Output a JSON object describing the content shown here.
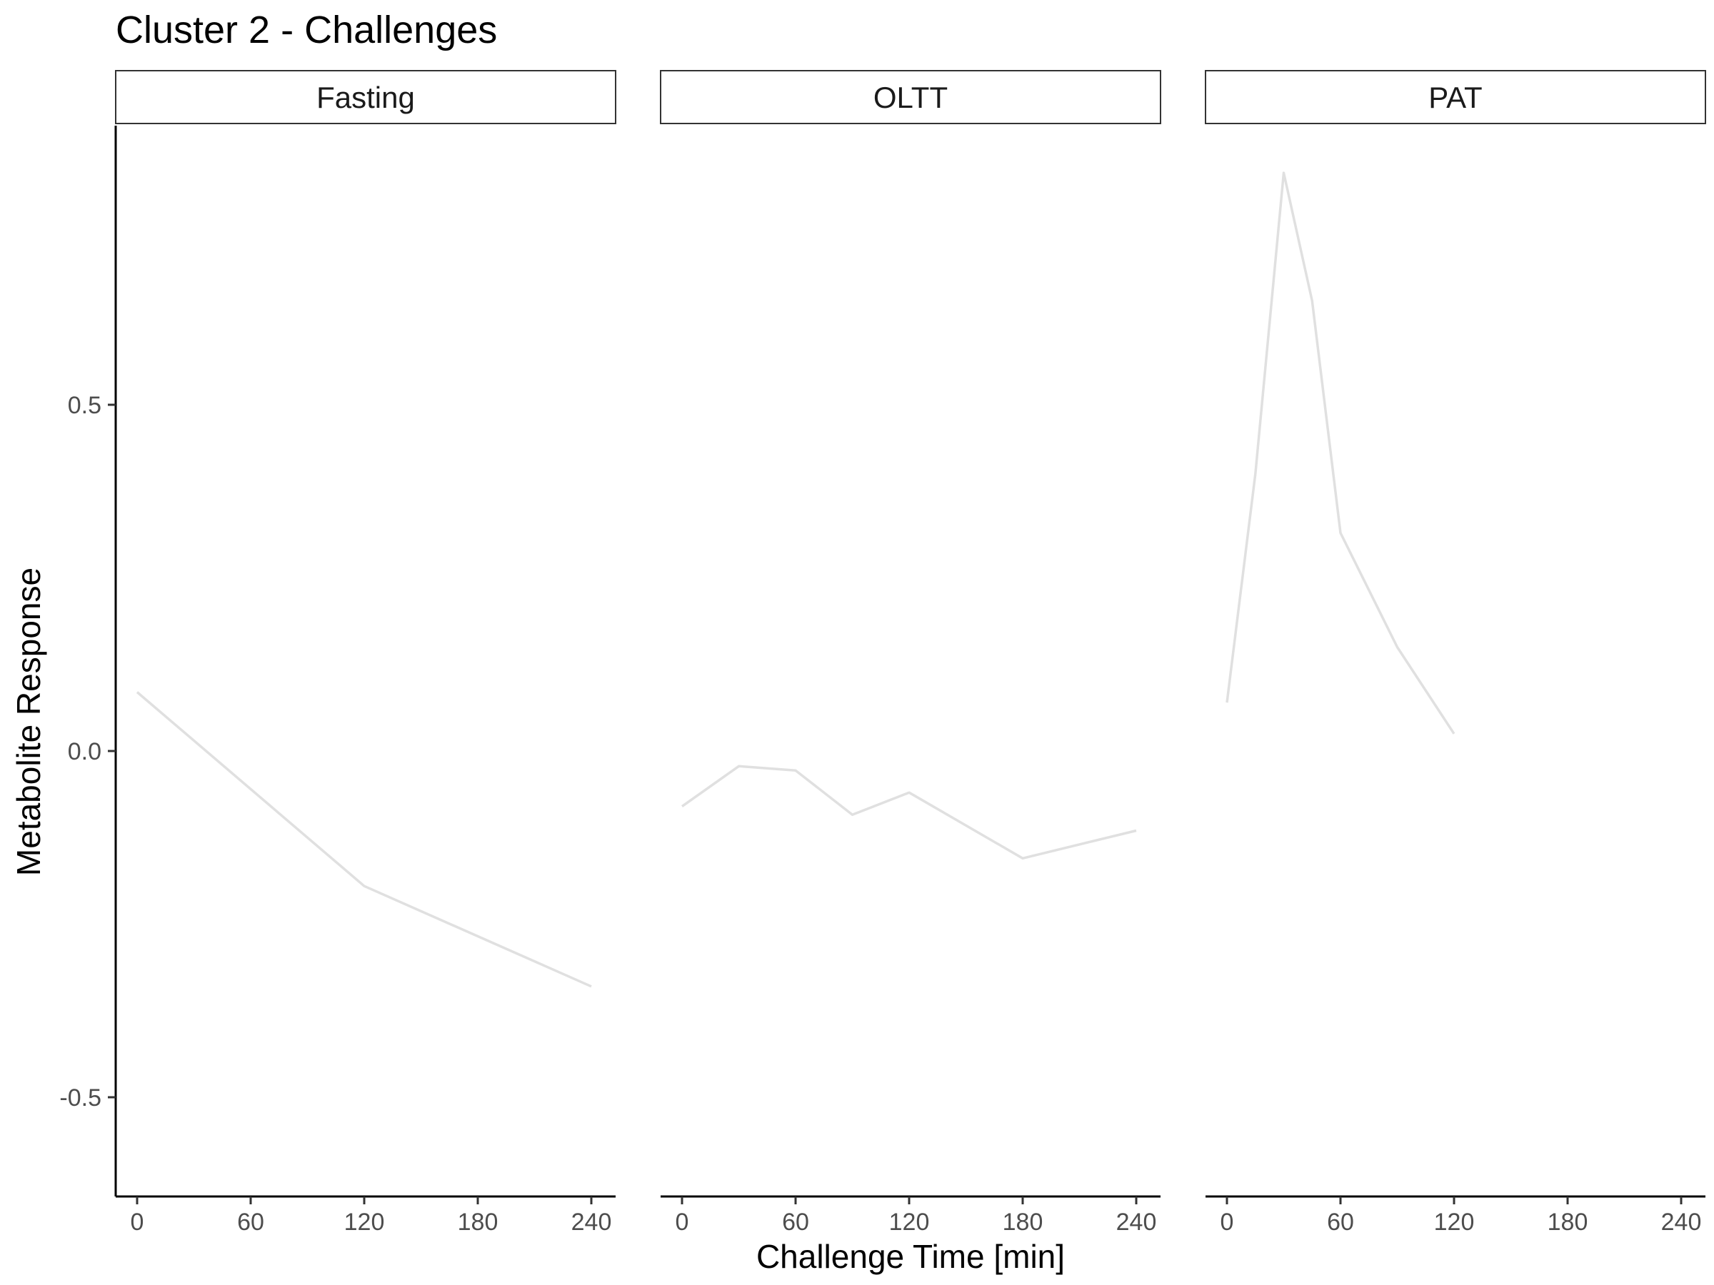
{
  "chart_data": {
    "type": "line",
    "title": "Cluster 2 - Challenges",
    "xlabel": "Challenge Time [min]",
    "ylabel": "Metabolite Response",
    "facets_shared_x": true,
    "xlim": [
      0,
      240
    ],
    "x_ticks": [
      "0",
      "60",
      "120",
      "180",
      "240"
    ],
    "ylim": [
      -0.64,
      0.9
    ],
    "y_ticks": [
      "-0.5",
      "0.0",
      "0.5"
    ],
    "grid": false,
    "line_color": "#e0e0e0",
    "panels": [
      {
        "label": "Fasting",
        "x": [
          0,
          120,
          240
        ],
        "y": [
          0.085,
          -0.195,
          -0.34
        ]
      },
      {
        "label": "OLTT",
        "x": [
          0,
          30,
          60,
          90,
          120,
          180,
          240
        ],
        "y": [
          -0.08,
          -0.022,
          -0.028,
          -0.092,
          -0.06,
          -0.155,
          -0.115
        ]
      },
      {
        "label": "PAT",
        "x": [
          0,
          15,
          30,
          45,
          60,
          90,
          120
        ],
        "y": [
          0.07,
          0.4,
          0.835,
          0.65,
          0.315,
          0.15,
          0.025
        ]
      }
    ]
  }
}
